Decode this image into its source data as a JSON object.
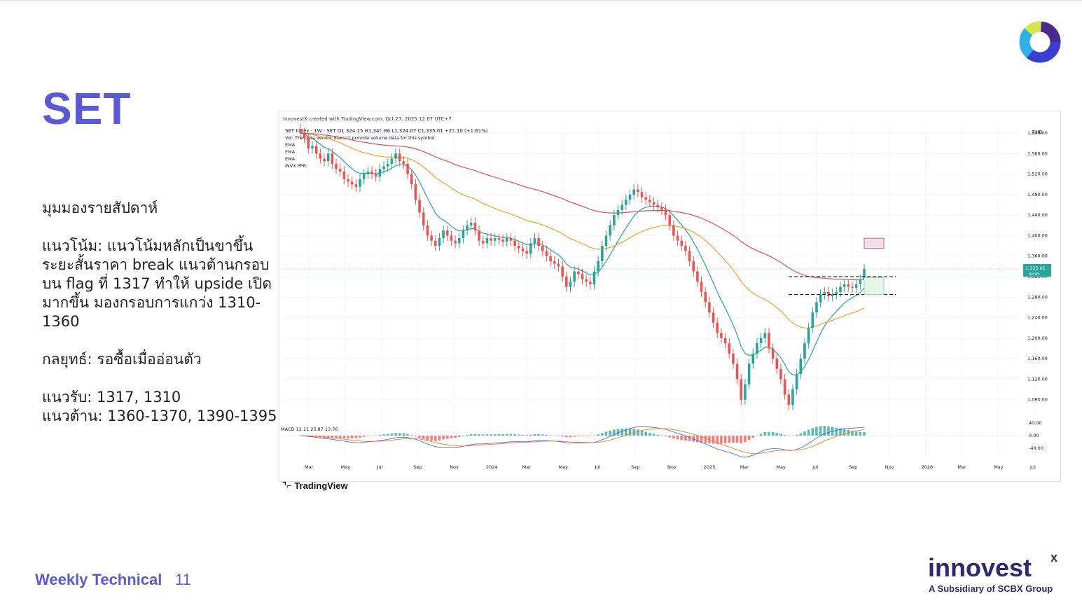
{
  "page": {
    "title": "SET",
    "footer_label": "Weekly Technical",
    "footer_page": "11",
    "brand_name": "innovest",
    "brand_mark": "x",
    "brand_sub": "A Subsidiary of SCBX Group",
    "tradingview_logo": "TradingView"
  },
  "analysis": {
    "heading": "มุมมองรายสัปดาห์",
    "trend": "แนวโน้ม: แนวโน้มหลักเป็นขาขึ้น ระยะสั้นราคา break แนวต้านกรอบบน flag ที่ 1317 ทำให้ upside เปิดมากขึ้น มองกรอบการแกว่ง 1310-1360",
    "strategy": "กลยุทธ์: รอซื้อเมื่ออ่อนตัว",
    "support": "แนวรับ: 1317, 1310",
    "resistance": "แนวต้าน: 1360-1370, 1390-1395"
  },
  "colors": {
    "title": "#5a5ad6",
    "up": "#26a69a",
    "down": "#ef5350",
    "ema_fast": "#26a69a",
    "ema_mid": "#f0a030",
    "ema_slow": "#d9534f",
    "brand": "#2e2a6e"
  },
  "chart_data": {
    "type": "candlestick",
    "header": "InnovestX created with TradingView.com, Oct 27, 2025 12:07 UTC+7",
    "symbol_line": "SET Index · 1W · SET  O1,324.15  H1,345.86  L1,324.07  C1,335.01  +21.10 (+1.61%)",
    "vol_note": "Vol: The data vendor doesn't provide volume data for this symbol.",
    "legend": [
      "EMA",
      "EMA",
      "EMA",
      "INVX PPR"
    ],
    "currency": "THB",
    "last_price": "1,335.01",
    "last_price_sub": "4d 6h",
    "x_ticks": [
      "Mar",
      "May",
      "Jul",
      "Sep",
      "Nov",
      "2024",
      "Mar",
      "May",
      "Jul",
      "Sep",
      "Nov",
      "2025",
      "Mar",
      "May",
      "Jul",
      "Sep",
      "Nov",
      "2026",
      "Mar",
      "May",
      "Jul"
    ],
    "y_ticks": [
      "1,600.00",
      "1,560.00",
      "1,520.00",
      "1,480.00",
      "1,440.00",
      "1,400.00",
      "1,360.00",
      "1,320.00",
      "1,280.00",
      "1,240.00",
      "1,200.00",
      "1,160.00",
      "1,120.00",
      "1,080.00"
    ],
    "y_ticks_values": [
      1600,
      1560,
      1520,
      1480,
      1440,
      1400,
      1360,
      1320,
      1280,
      1240,
      1200,
      1160,
      1120,
      1080
    ],
    "ylim": [
      1055,
      1615
    ],
    "macd_label": "MACD  12.11  25.87  13.76",
    "macd_ticks": [
      "40.00",
      "0.00",
      "-40.00"
    ],
    "macd_ticks_values": [
      40,
      0,
      -40
    ],
    "close_series": [
      1600,
      1590,
      1570,
      1575,
      1560,
      1550,
      1545,
      1560,
      1540,
      1530,
      1525,
      1510,
      1505,
      1500,
      1495,
      1510,
      1520,
      1525,
      1520,
      1515,
      1530,
      1535,
      1540,
      1550,
      1560,
      1545,
      1540,
      1520,
      1500,
      1470,
      1445,
      1420,
      1400,
      1390,
      1380,
      1395,
      1410,
      1400,
      1390,
      1385,
      1395,
      1410,
      1420,
      1425,
      1410,
      1390,
      1385,
      1395,
      1390,
      1395,
      1392,
      1388,
      1395,
      1390,
      1380,
      1375,
      1370,
      1365,
      1385,
      1395,
      1380,
      1370,
      1360,
      1350,
      1345,
      1340,
      1320,
      1300,
      1310,
      1330,
      1325,
      1315,
      1310,
      1305,
      1330,
      1350,
      1380,
      1400,
      1420,
      1440,
      1450,
      1460,
      1470,
      1480,
      1490,
      1485,
      1475,
      1470,
      1465,
      1460,
      1455,
      1450,
      1440,
      1420,
      1400,
      1390,
      1380,
      1370,
      1350,
      1330,
      1310,
      1290,
      1270,
      1250,
      1230,
      1210,
      1200,
      1190,
      1170,
      1150,
      1120,
      1080,
      1110,
      1150,
      1170,
      1190,
      1200,
      1210,
      1180,
      1160,
      1140,
      1120,
      1090,
      1070,
      1100,
      1130,
      1160,
      1190,
      1220,
      1250,
      1270,
      1285,
      1290,
      1282,
      1286,
      1290,
      1300,
      1305,
      1300,
      1298,
      1305,
      1314,
      1335
    ]
  }
}
